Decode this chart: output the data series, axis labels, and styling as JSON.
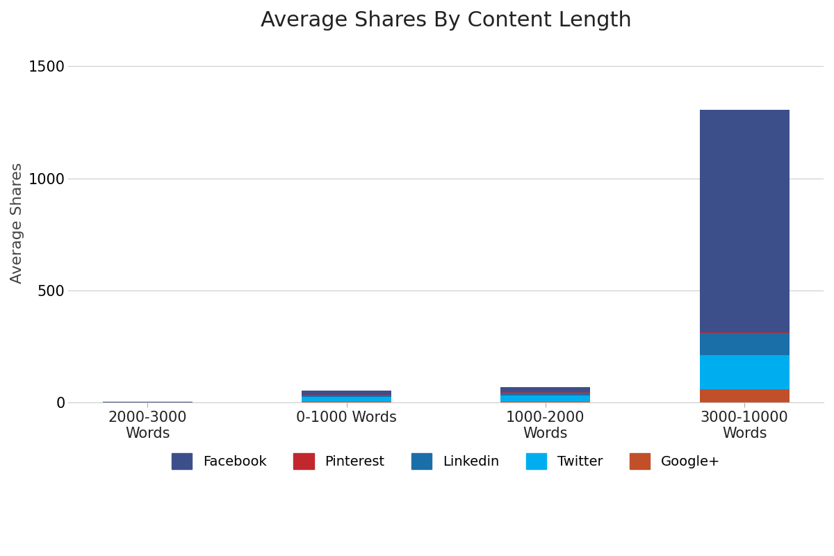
{
  "title": "Average Shares By Content Length",
  "ylabel": "Average Shares",
  "categories": [
    "2000-3000\nWords",
    "0-1000 Words",
    "1000-2000\nWords",
    "3000-10000\nWords"
  ],
  "series": [
    {
      "label": "Facebook",
      "color": "#3D4F8A",
      "values": [
        1,
        18,
        22,
        990
      ]
    },
    {
      "label": "Pinterest",
      "color": "#C1272D",
      "values": [
        0,
        1,
        2,
        5
      ]
    },
    {
      "label": "Linkedin",
      "color": "#1B6FA8",
      "values": [
        1,
        8,
        12,
        100
      ]
    },
    {
      "label": "Twitter",
      "color": "#00AEEF",
      "values": [
        1,
        22,
        28,
        150
      ]
    },
    {
      "label": "Google+",
      "color": "#C1502A",
      "values": [
        0,
        3,
        4,
        60
      ]
    }
  ],
  "stack_order": [
    "Google+",
    "Twitter",
    "Linkedin",
    "Pinterest",
    "Facebook"
  ],
  "legend_order": [
    "Facebook",
    "Pinterest",
    "Linkedin",
    "Twitter",
    "Google+"
  ],
  "ylim": [
    0,
    1600
  ],
  "yticks": [
    0,
    500,
    1000,
    1500
  ],
  "background_color": "#FFFFFF",
  "grid_color": "#CCCCCC",
  "title_fontsize": 22,
  "label_fontsize": 16,
  "tick_fontsize": 15,
  "legend_fontsize": 14,
  "bar_width": 0.45
}
